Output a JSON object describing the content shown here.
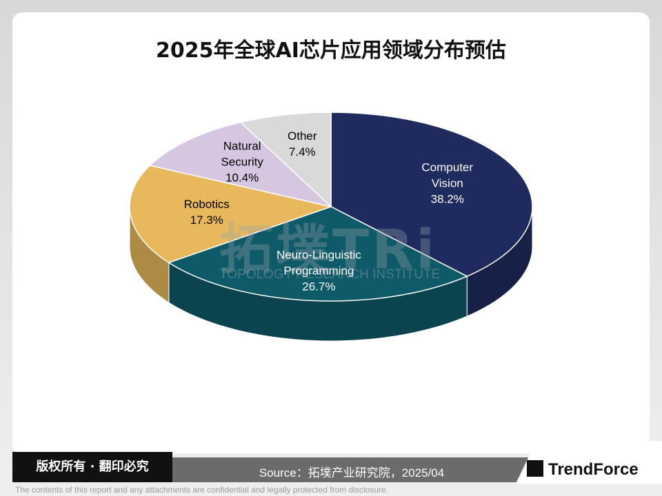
{
  "chart_data": {
    "type": "pie",
    "title": "2025年全球AI芯片应用领域分布预估",
    "categories": [
      "Computer Vision",
      "Neuro-Linguistic Programming",
      "Robotics",
      "Natural Security",
      "Other"
    ],
    "values": [
      38.2,
      26.7,
      17.3,
      10.4,
      7.4
    ],
    "value_labels": [
      "38.2%",
      "26.7%",
      "17.3%",
      "10.4%",
      "7.4%"
    ],
    "colors": [
      "#1f2a5e",
      "#0e5a68",
      "#e8b95c",
      "#d6c6df",
      "#d9d9d9"
    ],
    "label_colors": [
      "#ffffff",
      "#ffffff",
      "#000000",
      "#000000",
      "#000000"
    ]
  },
  "watermark": {
    "logo": "拓墣TRi",
    "name": "TOPOLOGY RESEARCH INSTITUTE"
  },
  "footer": {
    "copyright": "版权所有 · 翻印必究",
    "source": "Source：拓墣产业研究院，2025/04",
    "brand": "TrendForce",
    "disclaimer": "The contents of this report and any attachments are confidential and legally protected from disclosure."
  }
}
